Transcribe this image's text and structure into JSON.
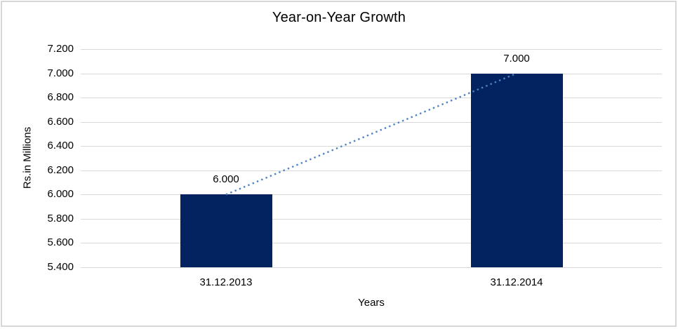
{
  "chart_data": {
    "type": "bar",
    "title": "Year-on-Year Growth",
    "xlabel": "Years",
    "ylabel": "Rs.in Millions",
    "categories": [
      "31.12.2013",
      "31.12.2014"
    ],
    "values": [
      6000,
      7000
    ],
    "value_labels": [
      "6.000",
      "7.000"
    ],
    "ylim": [
      5400,
      7200
    ],
    "ytick_step": 200,
    "ytick_labels": [
      "7.200",
      "7.000",
      "6.800",
      "6.600",
      "6.400",
      "6.200",
      "6.000",
      "5.800",
      "5.600",
      "5.400"
    ],
    "grid": true,
    "legend": "none",
    "trendline": {
      "style": "dotted",
      "from_value": 6000,
      "to_value": 7000
    },
    "colors": {
      "bar": "#022360",
      "trendline": "#4e82c4",
      "gridline": "#d9d9d9",
      "border": "#d5d8d7",
      "text": "#000000",
      "background": "#ffffff"
    }
  }
}
